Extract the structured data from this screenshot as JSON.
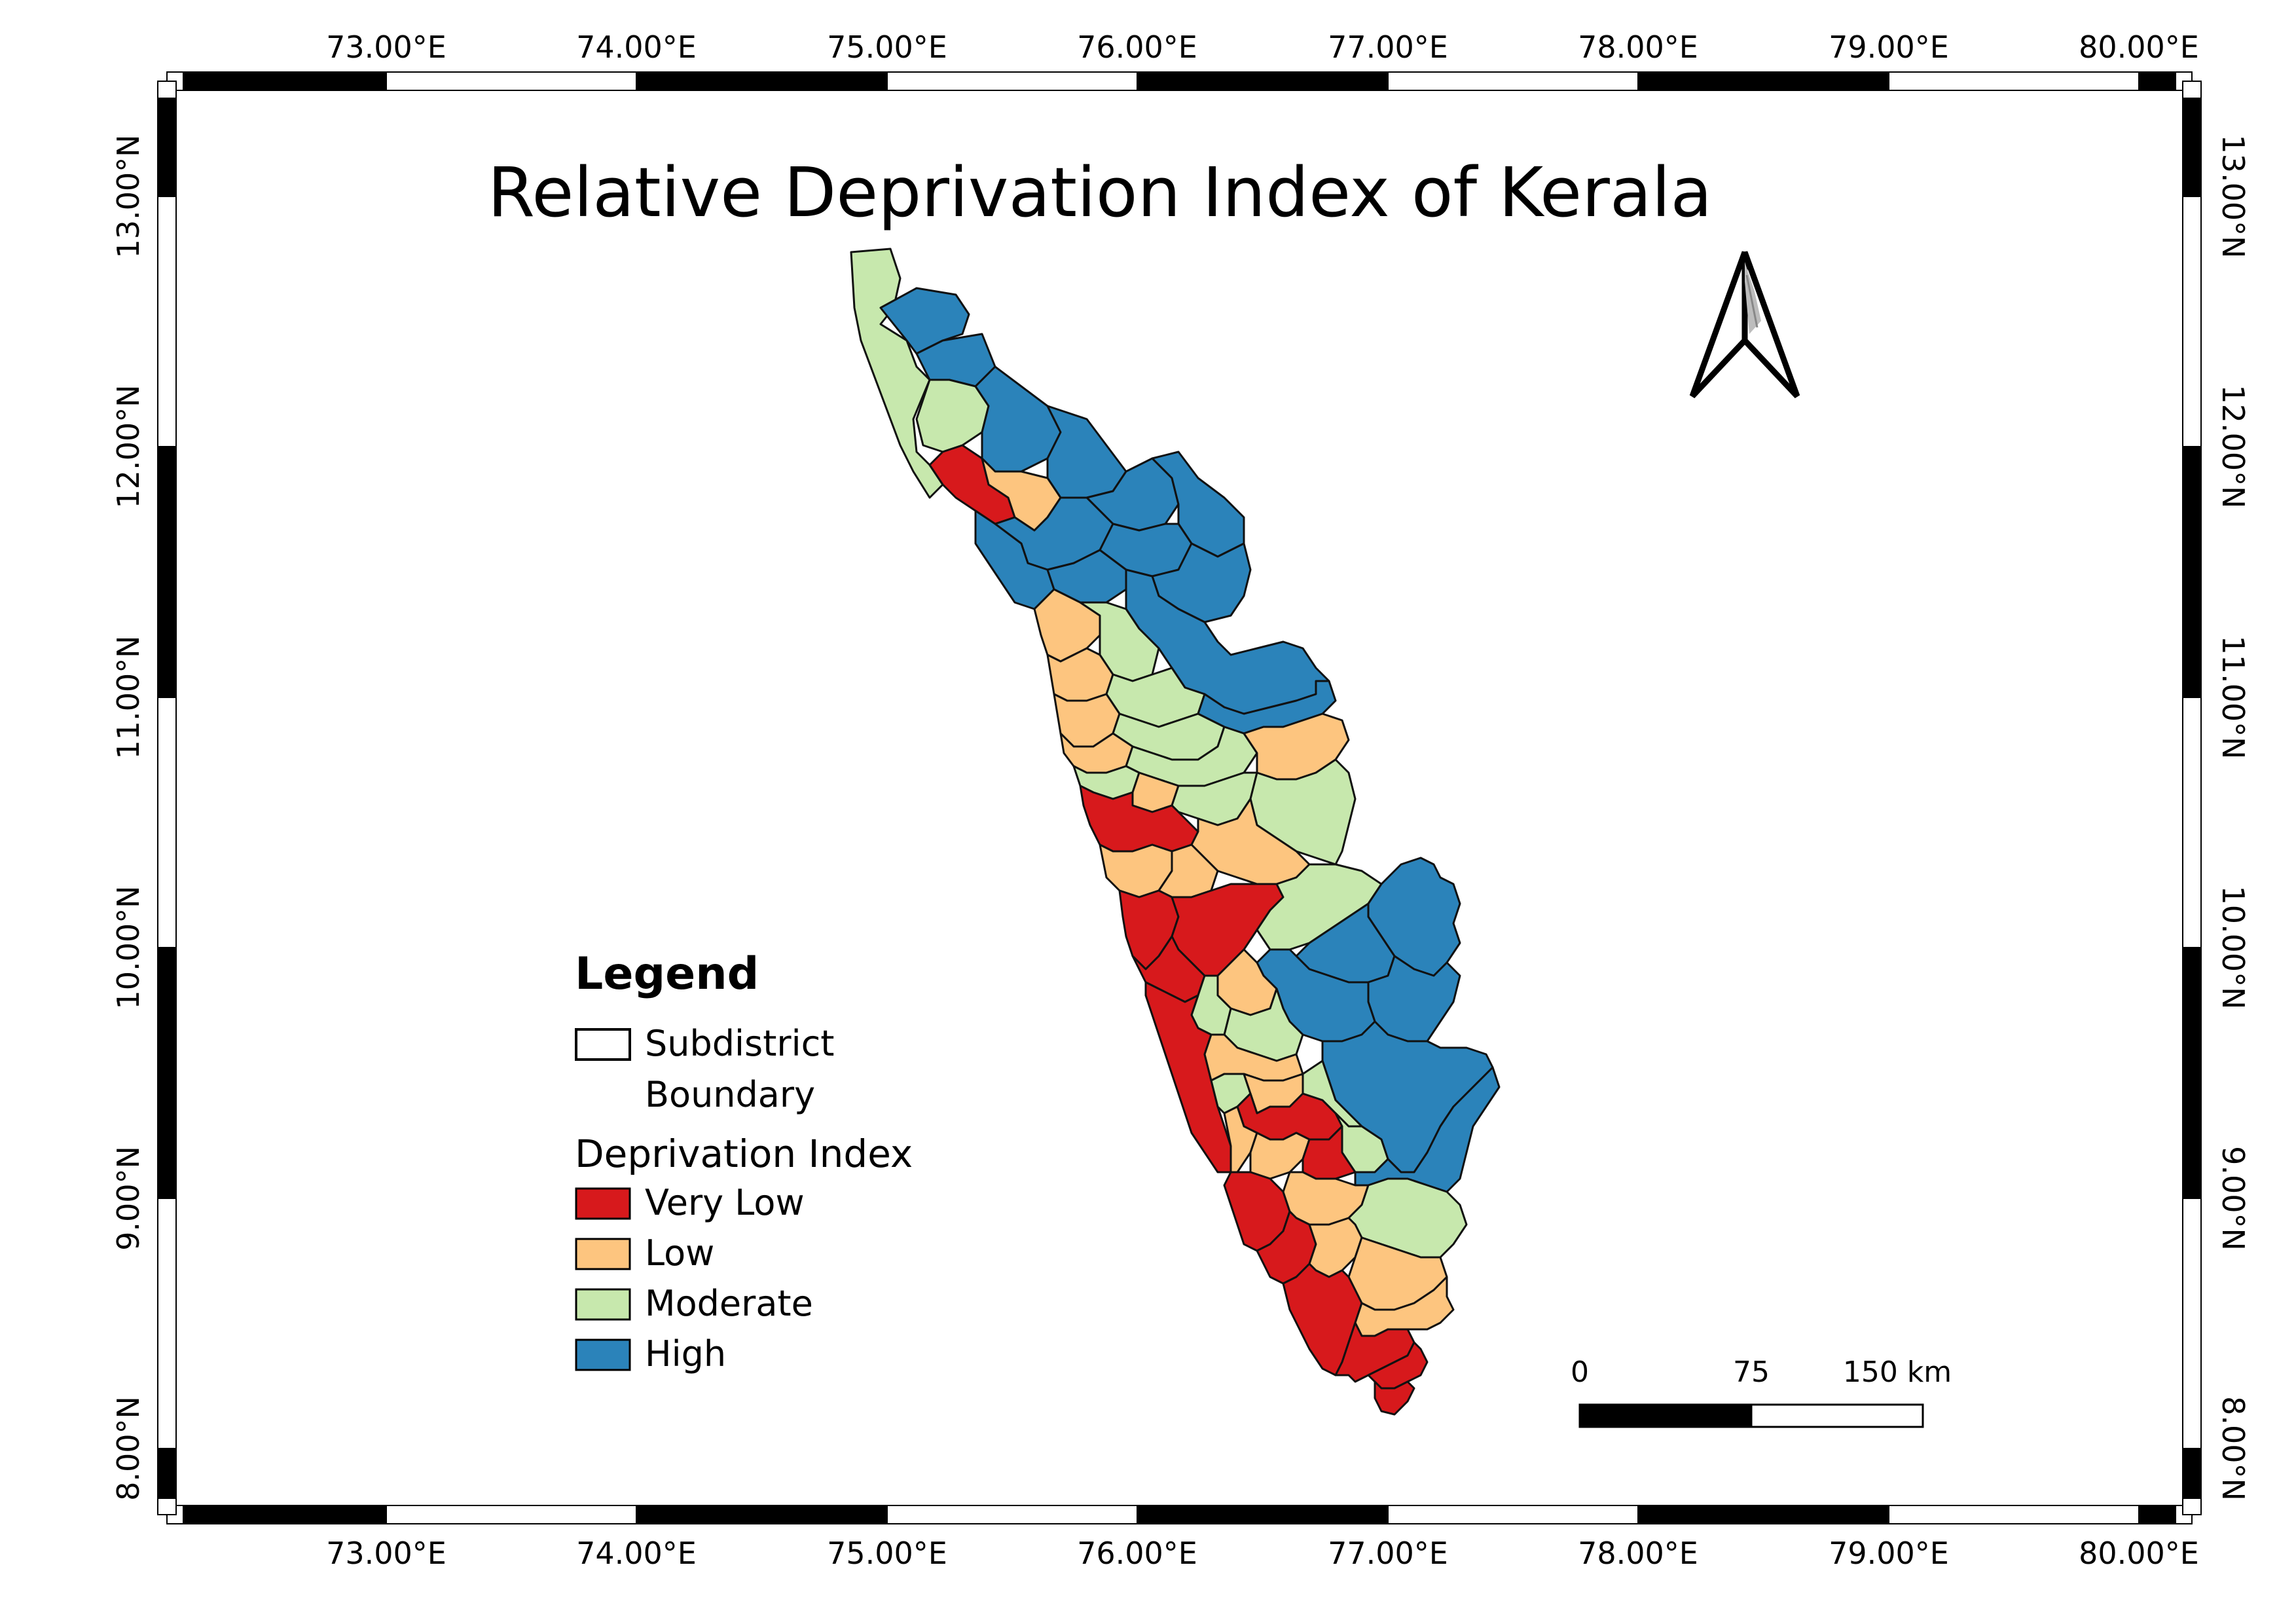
{
  "title": "Relative Deprivation Index of Kerala",
  "colors": {
    "very_low": "#d7191c",
    "low": "#fdc57f",
    "moderate": "#c7e8ad",
    "high": "#2b83ba"
  },
  "axes": {
    "longitude_labels": [
      "73.00°E",
      "74.00°E",
      "75.00°E",
      "76.00°E",
      "77.00°E",
      "78.00°E",
      "79.00°E",
      "80.00°E"
    ],
    "latitude_labels": [
      "13.00°N",
      "12.00°N",
      "11.00°N",
      "10.00°N",
      "9.00°N",
      "8.00°N"
    ]
  },
  "legend": {
    "title": "Legend",
    "boundary_line1": "Subdistrict",
    "boundary_line2": "Boundary",
    "index_title": "Deprivation Index",
    "classes": [
      {
        "key": "very_low",
        "label": "Very Low"
      },
      {
        "key": "low",
        "label": "Low"
      },
      {
        "key": "moderate",
        "label": "Moderate"
      },
      {
        "key": "high",
        "label": "High"
      }
    ]
  },
  "scale_bar": {
    "labels": [
      "0",
      "75",
      "150 km"
    ]
  },
  "north_arrow": {
    "icon": "north-arrow-icon"
  }
}
